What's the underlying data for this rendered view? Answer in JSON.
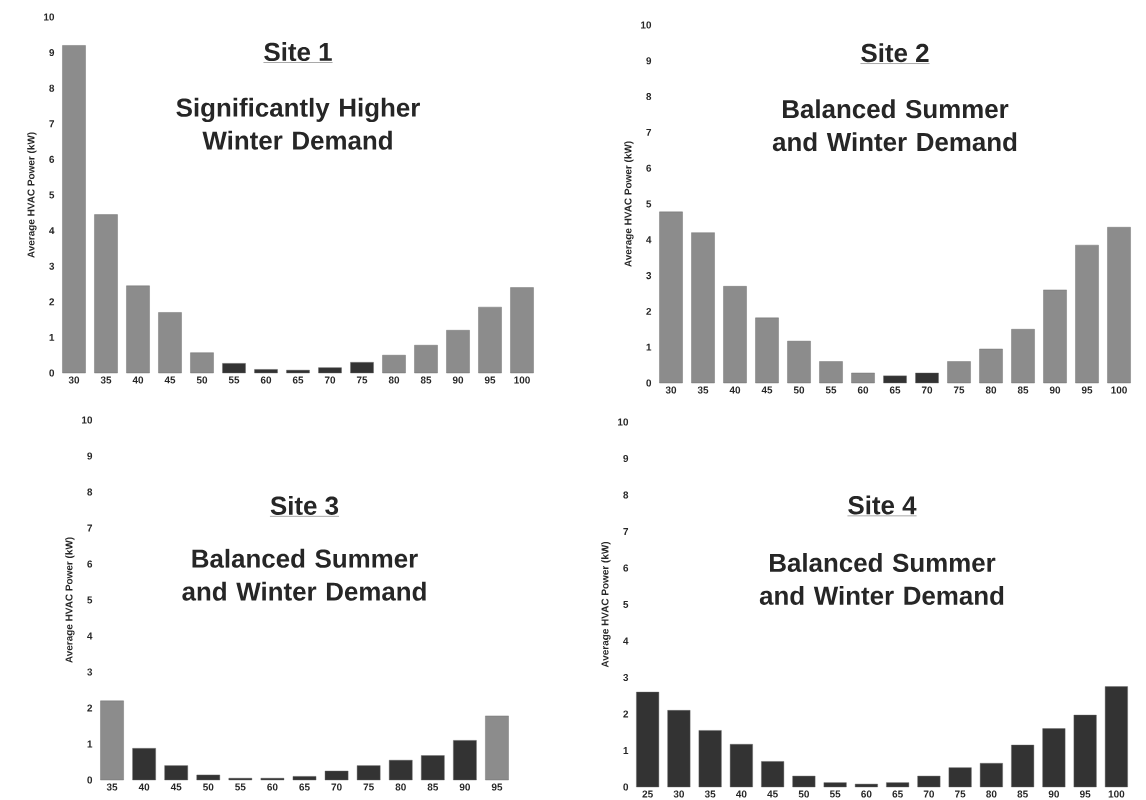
{
  "chart_data": [
    {
      "type": "bar",
      "title": "Site 1",
      "subtitle": "Significantly Higher Winter Demand",
      "ylabel": "Average HVAC Power (kW)",
      "categories": [
        "30",
        "35",
        "40",
        "45",
        "50",
        "55",
        "60",
        "65",
        "70",
        "75",
        "80",
        "85",
        "90",
        "95",
        "100"
      ],
      "values": [
        9.2,
        4.45,
        2.45,
        1.7,
        0.57,
        0.27,
        0.1,
        0.08,
        0.15,
        0.3,
        0.5,
        0.78,
        1.2,
        1.85,
        2.4
      ],
      "colors": [
        "#8c8c8c",
        "#8c8c8c",
        "#8c8c8c",
        "#8c8c8c",
        "#8c8c8c",
        "#333333",
        "#333333",
        "#333333",
        "#333333",
        "#333333",
        "#8c8c8c",
        "#8c8c8c",
        "#8c8c8c",
        "#8c8c8c",
        "#8c8c8c"
      ],
      "ylim": [
        0,
        10
      ],
      "yticks": [
        0,
        1,
        2,
        3,
        4,
        5,
        6,
        7,
        8,
        9,
        10
      ]
    },
    {
      "type": "bar",
      "title": "Site 2",
      "subtitle": "Balanced Summer and Winter Demand",
      "ylabel": "Average HVAC Power (kW)",
      "categories": [
        "30",
        "35",
        "40",
        "45",
        "50",
        "55",
        "60",
        "65",
        "70",
        "75",
        "80",
        "85",
        "90",
        "95",
        "100"
      ],
      "values": [
        4.78,
        4.2,
        2.7,
        1.82,
        1.17,
        0.6,
        0.28,
        0.2,
        0.28,
        0.6,
        0.95,
        1.5,
        2.6,
        3.85,
        4.35
      ],
      "colors": [
        "#8c8c8c",
        "#8c8c8c",
        "#8c8c8c",
        "#8c8c8c",
        "#8c8c8c",
        "#8c8c8c",
        "#8c8c8c",
        "#333333",
        "#333333",
        "#8c8c8c",
        "#8c8c8c",
        "#8c8c8c",
        "#8c8c8c",
        "#8c8c8c",
        "#8c8c8c"
      ],
      "ylim": [
        0,
        10
      ],
      "yticks": [
        0,
        1,
        2,
        3,
        4,
        5,
        6,
        7,
        8,
        9,
        10
      ]
    },
    {
      "type": "bar",
      "title": "Site 3",
      "subtitle": "Balanced Summer and Winter Demand",
      "ylabel": "Average HVAC Power (kW)",
      "categories": [
        "35",
        "40",
        "45",
        "50",
        "55",
        "60",
        "65",
        "70",
        "75",
        "80",
        "85",
        "90",
        "95"
      ],
      "values": [
        2.2,
        0.88,
        0.4,
        0.14,
        0.05,
        0.05,
        0.1,
        0.25,
        0.4,
        0.55,
        0.68,
        1.1,
        1.78
      ],
      "colors": [
        "#8c8c8c",
        "#333333",
        "#333333",
        "#333333",
        "#333333",
        "#333333",
        "#333333",
        "#333333",
        "#333333",
        "#333333",
        "#333333",
        "#333333",
        "#8c8c8c"
      ],
      "ylim": [
        0,
        10
      ],
      "yticks": [
        0,
        1,
        2,
        3,
        4,
        5,
        6,
        7,
        8,
        9,
        10
      ]
    },
    {
      "type": "bar",
      "title": "Site 4",
      "subtitle": "Balanced Summer and Winter Demand",
      "ylabel": "Average HVAC Power (kW)",
      "categories": [
        "25",
        "30",
        "35",
        "40",
        "45",
        "50",
        "55",
        "60",
        "65",
        "70",
        "75",
        "80",
        "85",
        "90",
        "95",
        "100"
      ],
      "values": [
        2.6,
        2.1,
        1.55,
        1.17,
        0.7,
        0.3,
        0.12,
        0.08,
        0.12,
        0.3,
        0.53,
        0.65,
        1.15,
        1.6,
        1.97,
        2.75
      ],
      "colors": [
        "#333333",
        "#333333",
        "#333333",
        "#333333",
        "#333333",
        "#333333",
        "#333333",
        "#333333",
        "#333333",
        "#333333",
        "#333333",
        "#333333",
        "#333333",
        "#333333",
        "#333333",
        "#333333"
      ],
      "ylim": [
        0,
        10
      ],
      "yticks": [
        0,
        1,
        2,
        3,
        4,
        5,
        6,
        7,
        8,
        9,
        10
      ]
    }
  ]
}
